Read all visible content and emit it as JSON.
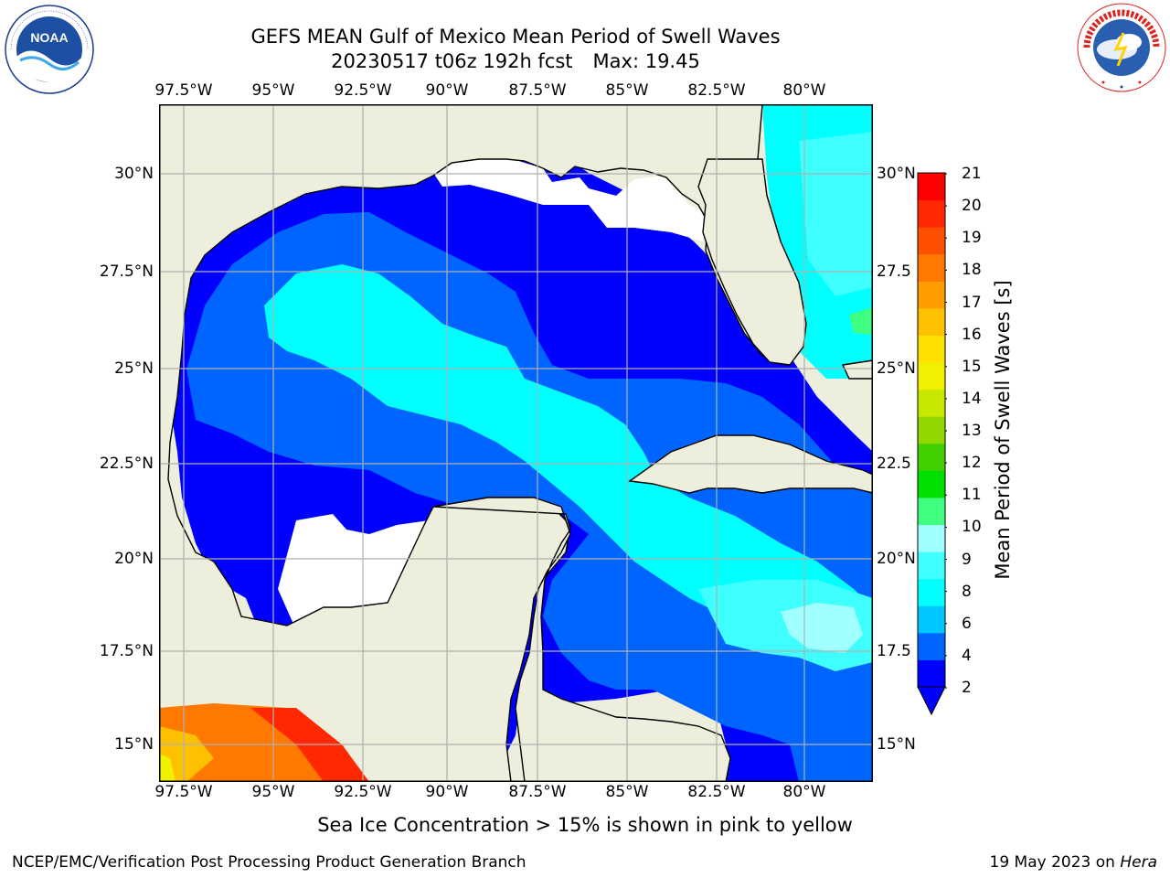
{
  "title": {
    "line1": "GEFS MEAN Gulf of Mexico Mean Period of Swell Waves",
    "run": "20230517 t06z 192h fcst",
    "max": "Max: 19.45"
  },
  "logos": {
    "left": {
      "name": "noaa-logo",
      "text": "NOAA",
      "ring_text": "NATIONAL OCEANIC AND ATMOSPHERIC ADMINISTRATION · U.S. DEPARTMENT OF COMMERCE"
    },
    "right": {
      "name": "nws-logo",
      "ring_text": "NATIONAL WEATHER SERVICE"
    }
  },
  "map": {
    "longitude_ticks": [
      "97.5°W",
      "95°W",
      "92.5°W",
      "90°W",
      "87.5°W",
      "85°W",
      "82.5°W",
      "80°W"
    ],
    "latitude_ticks_left": [
      "30°N",
      "27.5°N",
      "25°N",
      "22.5°N",
      "20°N",
      "17.5°N",
      "15°N"
    ],
    "latitude_ticks_right": [
      "30°N",
      "27.5",
      "25°N",
      "22.5",
      "20°N",
      "17.5",
      "15°N"
    ],
    "colors": {
      "land": "#eeeedd",
      "no_data": "#ffffff",
      "grid": "#b0b0b0",
      "coast": "#000000"
    }
  },
  "colorbar": {
    "label": "Mean Period of Swell Waves [s]",
    "ticks": [
      "21",
      "20",
      "19",
      "18",
      "17",
      "16",
      "15",
      "14",
      "13",
      "12",
      "11",
      "10",
      "9",
      "8",
      "6",
      "4",
      "2"
    ],
    "colors": [
      "#0000ff",
      "#0064ff",
      "#00c8ff",
      "#00ffff",
      "#40ffff",
      "#a0ffff",
      "#40ff80",
      "#00e000",
      "#40d000",
      "#90d800",
      "#c8e800",
      "#f0f000",
      "#ffe000",
      "#ffc000",
      "#ff9c00",
      "#ff7800",
      "#ff5000",
      "#ff2800",
      "#ff0000"
    ]
  },
  "note": "Sea Ice Concentration > 15% is shown in pink to yellow",
  "footer": {
    "left": "NCEP/EMC/Verification Post Processing Product Generation Branch",
    "date": "19 May 2023 on ",
    "host": "Hera"
  }
}
